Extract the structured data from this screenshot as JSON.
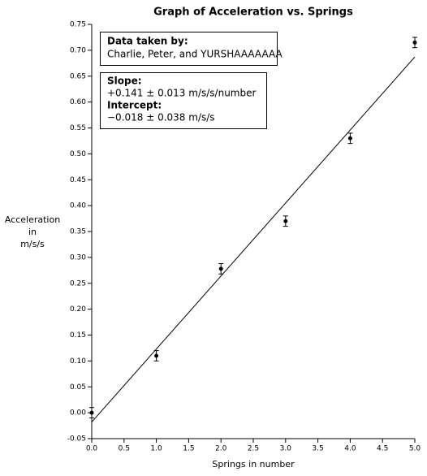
{
  "chart_data": {
    "type": "scatter",
    "title": "Graph of Acceleration vs. Springs",
    "xlabel": "Springs in number",
    "ylabel": [
      "Acceleration",
      "in",
      "m/s/s"
    ],
    "series": [
      {
        "name": "Acceleration",
        "color": "#000000",
        "x": [
          0,
          1,
          2,
          3,
          4,
          5
        ],
        "values": [
          0,
          0.11,
          0.278,
          0.37,
          0.53,
          0.715
        ],
        "errors": [
          0.01,
          0.01,
          0.01,
          0.01,
          0.01,
          0.01
        ]
      }
    ],
    "fit": {
      "slope": 0.141,
      "intercept": -0.018
    },
    "annotations": [
      {
        "heading": "Data taken by:",
        "text": "Charlie, Peter, and YURSHAAAAAAA"
      },
      {
        "heading": "Slope:",
        "text": "+0.141 ± 0.013 m/s/s/number",
        "heading2": "Intercept:",
        "text2": "−0.018 ± 0.038 m/s/s"
      }
    ],
    "xlim": [
      0,
      5
    ],
    "ylim": [
      -0.05,
      0.75
    ],
    "xticks": [
      {
        "value": 0,
        "label": "0.0"
      },
      {
        "value": 0.5,
        "label": "0.5"
      },
      {
        "value": 1,
        "label": "1.0"
      },
      {
        "value": 1.5,
        "label": "1.5"
      },
      {
        "value": 2,
        "label": "2.0"
      },
      {
        "value": 2.5,
        "label": "2.5"
      },
      {
        "value": 3,
        "label": "3.0"
      },
      {
        "value": 3.5,
        "label": "3.5"
      },
      {
        "value": 4,
        "label": "4.0"
      },
      {
        "value": 4.5,
        "label": "4.5"
      },
      {
        "value": 5,
        "label": "5.0"
      }
    ],
    "yticks": [
      {
        "value": -0.05,
        "label": "-0.05"
      },
      {
        "value": 0,
        "label": "0.00"
      },
      {
        "value": 0.05,
        "label": "0.05"
      },
      {
        "value": 0.1,
        "label": "0.10"
      },
      {
        "value": 0.15,
        "label": "0.15"
      },
      {
        "value": 0.2,
        "label": "0.20"
      },
      {
        "value": 0.25,
        "label": "0.25"
      },
      {
        "value": 0.3,
        "label": "0.30"
      },
      {
        "value": 0.35,
        "label": "0.35"
      },
      {
        "value": 0.4,
        "label": "0.40"
      },
      {
        "value": 0.45,
        "label": "0.45"
      },
      {
        "value": 0.5,
        "label": "0.50"
      },
      {
        "value": 0.55,
        "label": "0.55"
      },
      {
        "value": 0.6,
        "label": "0.60"
      },
      {
        "value": 0.65,
        "label": "0.65"
      },
      {
        "value": 0.7,
        "label": "0.70"
      },
      {
        "value": 0.75,
        "label": "0.75"
      }
    ]
  }
}
